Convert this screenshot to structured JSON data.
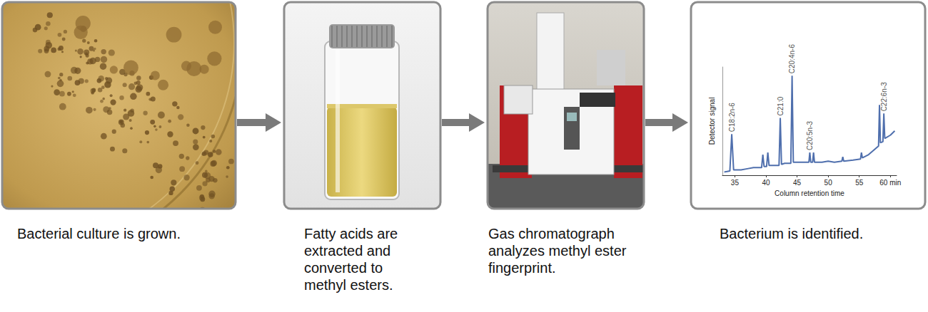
{
  "panels": [
    {
      "caption": "Bacterial culture is grown."
    },
    {
      "caption": "Fatty acids are extracted and converted to methyl esters."
    },
    {
      "caption": "Gas chromatograph analyzes methyl ester fingerprint."
    },
    {
      "caption": "Bacterium is identified."
    }
  ],
  "chart_data": {
    "type": "line",
    "x_label": "Column retention time",
    "y_label": "Detector signal",
    "color": "#4f6fad",
    "x": [
      33.3,
      34.2,
      34.5,
      34.8,
      36,
      37,
      38,
      39.3,
      39.5,
      39.7,
      40.1,
      40.3,
      40.5,
      41.5,
      42.1,
      42.3,
      42.5,
      43,
      44,
      44.2,
      44.4,
      45,
      46.5,
      46.9,
      47.05,
      47.2,
      47.5,
      47.65,
      47.8,
      49,
      50,
      51,
      52.2,
      52.35,
      52.5,
      54,
      55.2,
      55.35,
      55.5,
      56.5,
      57.5,
      58.1,
      58.25,
      58.4,
      58.8,
      58.95,
      59.1,
      60,
      60.7
    ],
    "values": [
      3,
      4,
      38,
      5,
      5,
      6,
      7,
      7,
      19,
      8,
      8,
      21,
      9,
      9,
      9,
      53,
      10,
      11,
      11,
      92,
      12,
      12,
      12,
      12,
      21,
      12,
      12,
      21,
      12,
      12,
      13,
      12,
      13,
      17,
      13,
      14,
      15,
      21,
      16,
      19,
      24,
      27,
      65,
      30,
      31,
      57,
      34,
      37,
      41
    ],
    "xlim": [
      33,
      61
    ],
    "xticks": [
      35,
      40,
      45,
      50,
      55,
      {
        "value": 60,
        "label": "60 min"
      }
    ],
    "ylim": [
      0,
      100
    ],
    "yticks": [],
    "tick_labels": "x",
    "grid": false,
    "annotations": [
      {
        "text": "C18:2n-6",
        "x": 34.5
      },
      {
        "text": "C21:0",
        "x": 42.3
      },
      {
        "text": "C20:4n-6",
        "x": 44.2
      },
      {
        "text": "C20:5n-3",
        "x": 47.05
      },
      {
        "text": "C22:6n-3",
        "x": 58.95
      }
    ]
  }
}
